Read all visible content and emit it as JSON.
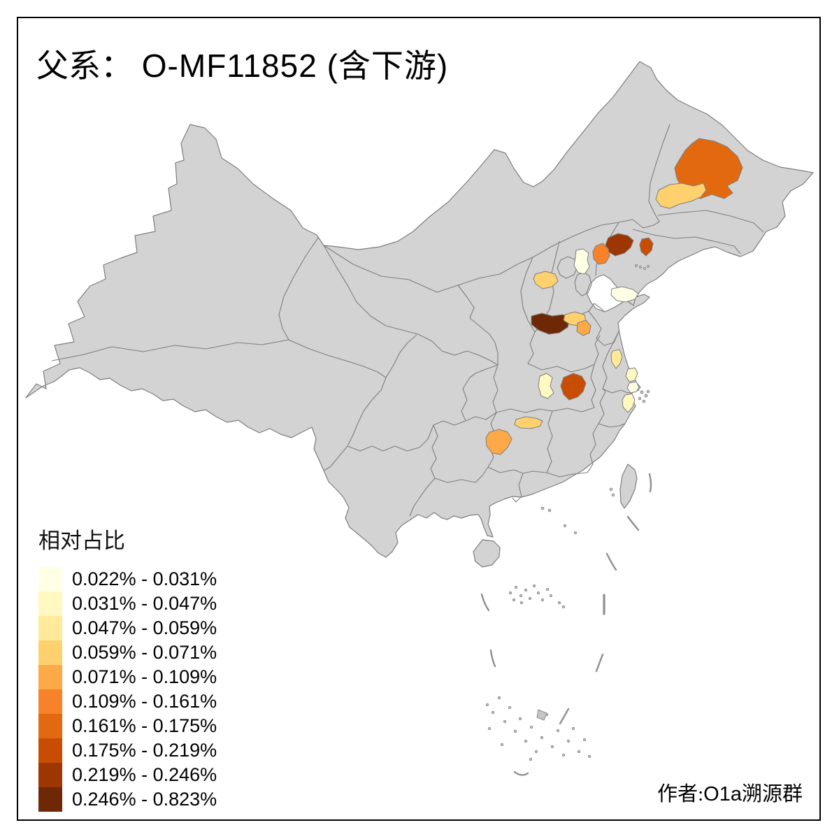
{
  "title": {
    "prefix": "父系：",
    "main": "O-MF11852 (含下游)"
  },
  "legend": {
    "title": "相对占比",
    "items": [
      {
        "label": "0.022% - 0.031%",
        "color": "#FFFFE5"
      },
      {
        "label": "0.031% - 0.047%",
        "color": "#FFF8C1"
      },
      {
        "label": "0.047% - 0.059%",
        "color": "#FEEA9A"
      },
      {
        "label": "0.059% - 0.071%",
        "color": "#FED16E"
      },
      {
        "label": "0.071% - 0.109%",
        "color": "#FEA948"
      },
      {
        "label": "0.109% - 0.161%",
        "color": "#F8822A"
      },
      {
        "label": "0.161% - 0.175%",
        "color": "#E2690F"
      },
      {
        "label": "0.175% - 0.219%",
        "color": "#C84D03"
      },
      {
        "label": "0.219% - 0.246%",
        "color": "#9C3603"
      },
      {
        "label": "0.246% - 0.823%",
        "color": "#6F2806"
      }
    ]
  },
  "attribution": {
    "prefix": "作者:",
    "group_latin": "O1a",
    "group_cjk": "溯源群"
  },
  "map": {
    "land_color": "#D3D3D3",
    "border_color": "#7E7E7E",
    "sea_color": "#FFFFFF",
    "frame_color": "#000000",
    "regions": [
      {
        "id": "region-1",
        "legend_class": 7
      },
      {
        "id": "region-2",
        "legend_class": 4
      },
      {
        "id": "region-3",
        "legend_class": 9
      },
      {
        "id": "region-4",
        "legend_class": 6
      },
      {
        "id": "region-5",
        "legend_class": 8
      },
      {
        "id": "region-6",
        "legend_class": 1
      },
      {
        "id": "region-7",
        "legend_class": 4
      },
      {
        "id": "region-8",
        "legend_class": 1
      },
      {
        "id": "region-9",
        "legend_class": 10
      },
      {
        "id": "region-10",
        "legend_class": 4
      },
      {
        "id": "region-11",
        "legend_class": 5
      },
      {
        "id": "region-12",
        "legend_class": 3
      },
      {
        "id": "region-13",
        "legend_class": 2
      },
      {
        "id": "region-14",
        "legend_class": 8
      },
      {
        "id": "region-15",
        "legend_class": 2
      },
      {
        "id": "region-16",
        "legend_class": 1
      },
      {
        "id": "region-17",
        "legend_class": 2
      },
      {
        "id": "region-18",
        "legend_class": 4
      },
      {
        "id": "region-19",
        "legend_class": 5
      }
    ]
  }
}
